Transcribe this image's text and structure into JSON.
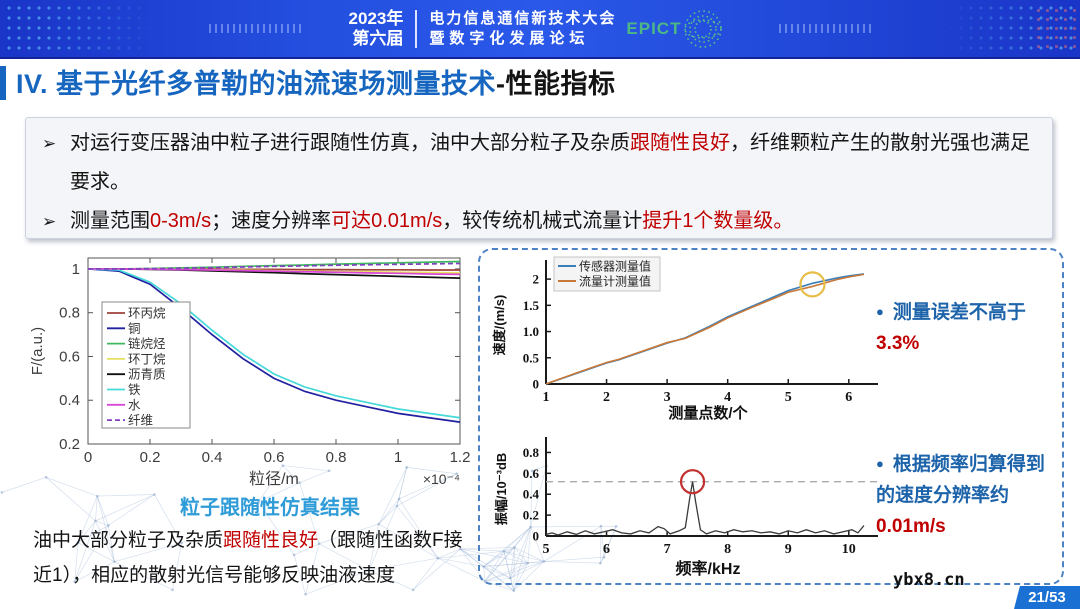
{
  "banner": {
    "year": "2023年",
    "edition": "第六届",
    "conference_line1": "电力信息通信新技术大会",
    "conference_line2": "暨数字化发展论坛",
    "logo_text": "EPICT"
  },
  "page_title": {
    "main": "IV. 基于光纤多普勒的油流速场测量技术",
    "suffix": "-性能指标"
  },
  "intro": {
    "marker": "➢",
    "bullets": [
      {
        "segments": [
          {
            "t": "对运行变压器油中粒子进行跟随性仿真，油中大部分粒子及杂质",
            "c": "dark"
          },
          {
            "t": "跟随性良好",
            "c": "red"
          },
          {
            "t": "，纤维颗粒产生的散射光强也满足要求。",
            "c": "dark"
          }
        ]
      },
      {
        "segments": [
          {
            "t": "测量范围",
            "c": "dark"
          },
          {
            "t": "0-3m/s",
            "c": "red"
          },
          {
            "t": "；速度分辨率",
            "c": "dark"
          },
          {
            "t": "可达0.01m/s",
            "c": "red"
          },
          {
            "t": "，较传统机械式流量计",
            "c": "dark"
          },
          {
            "t": "提升1个数量级。",
            "c": "red"
          }
        ]
      }
    ]
  },
  "left_caption": "粒子跟随性仿真结果",
  "note": {
    "segments": [
      {
        "t": "油中大部分粒子及杂质",
        "c": "dark"
      },
      {
        "t": "跟随性良好",
        "c": "red"
      },
      {
        "t": "（跟随性函数F接近1），相应的散射光信号能够反映油液速度",
        "c": "dark"
      }
    ]
  },
  "right_bullets": [
    {
      "segments": [
        {
          "t": "测量误差不高于",
          "c": "blue"
        },
        {
          "t": "3.3%",
          "c": "red"
        }
      ]
    },
    {
      "segments": [
        {
          "t": "根据频率归算得到的速度分辨率约",
          "c": "blue"
        },
        {
          "t": "0.01m/s",
          "c": "red"
        }
      ]
    }
  ],
  "watermark": "ybx8.cn",
  "page_number": "21/53",
  "chart_data": [
    {
      "id": "follow",
      "type": "line",
      "caption": "粒子跟随性仿真结果",
      "xlabel": "粒径/m",
      "x_scale_note": "×10⁻⁴",
      "ylabel": "F/(a.u.)",
      "xlim": [
        0,
        1.2
      ],
      "ylim": [
        0.2,
        1.05
      ],
      "xticks": [
        "0",
        "0.2",
        "0.4",
        "0.6",
        "0.8",
        "1",
        "1.2"
      ],
      "yticks": [
        "0.2",
        "0.4",
        "0.6",
        "0.8",
        "1"
      ],
      "grid": false,
      "legend_position": "upper-left-inside",
      "x": [
        0,
        0.1,
        0.2,
        0.3,
        0.4,
        0.5,
        0.6,
        0.7,
        0.8,
        0.9,
        1.0,
        1.1,
        1.2
      ],
      "series": [
        {
          "name": "环丙烷",
          "color": "#a0403a",
          "dash": null,
          "values": [
            1.0,
            1.0,
            1.0,
            0.999,
            0.999,
            0.998,
            0.998,
            0.997,
            0.997,
            0.996,
            0.996,
            0.995,
            0.995
          ]
        },
        {
          "name": "铜",
          "color": "#2020a0",
          "dash": null,
          "values": [
            1.0,
            0.99,
            0.93,
            0.82,
            0.7,
            0.59,
            0.5,
            0.44,
            0.4,
            0.37,
            0.34,
            0.32,
            0.3
          ]
        },
        {
          "name": "链烷烃",
          "color": "#40b860",
          "dash": null,
          "values": [
            1.0,
            1.0,
            1.002,
            1.005,
            1.008,
            1.012,
            1.015,
            1.018,
            1.022,
            1.025,
            1.028,
            1.031,
            1.034
          ]
        },
        {
          "name": "环丁烷",
          "color": "#e8e060",
          "dash": null,
          "values": [
            1.0,
            1.0,
            0.999,
            0.998,
            0.996,
            0.994,
            0.992,
            0.99,
            0.988,
            0.987,
            0.985,
            0.984,
            0.982
          ]
        },
        {
          "name": "沥青质",
          "color": "#101010",
          "dash": null,
          "values": [
            1.0,
            1.0,
            0.998,
            0.995,
            0.991,
            0.987,
            0.983,
            0.978,
            0.974,
            0.97,
            0.966,
            0.962,
            0.958
          ]
        },
        {
          "name": "铁",
          "color": "#45d8d8",
          "dash": null,
          "values": [
            1.0,
            0.995,
            0.94,
            0.84,
            0.72,
            0.61,
            0.52,
            0.46,
            0.42,
            0.39,
            0.36,
            0.34,
            0.32
          ]
        },
        {
          "name": "水",
          "color": "#d848d8",
          "dash": null,
          "values": [
            1.0,
            1.0,
            0.999,
            0.997,
            0.995,
            0.992,
            0.99,
            0.987,
            0.985,
            0.982,
            0.98,
            0.977,
            0.975
          ]
        },
        {
          "name": "纤维",
          "color": "#8040c0",
          "dash": "5,3",
          "values": [
            1.0,
            1.0,
            1.001,
            1.003,
            1.006,
            1.009,
            1.012,
            1.014,
            1.017,
            1.019,
            1.021,
            1.023,
            1.025
          ]
        }
      ]
    },
    {
      "id": "velocity",
      "type": "line",
      "xlabel": "测量点数/个",
      "ylabel": "速度/(m/s)",
      "xlim": [
        1,
        6.35
      ],
      "ylim": [
        0,
        2.25
      ],
      "xticks": [
        "1",
        "2",
        "3",
        "4",
        "5",
        "6"
      ],
      "yticks": [
        "0",
        "0.5",
        "1.0",
        "1.5",
        "2"
      ],
      "grid": false,
      "legend_position": "upper-left-inside",
      "x": [
        1,
        1.5,
        2,
        2.2,
        2.6,
        3,
        3.3,
        3.7,
        4,
        4.4,
        4.8,
        5,
        5.4,
        5.8,
        6,
        6.25
      ],
      "series": [
        {
          "name": "传感器测量值",
          "color": "#3a7fb8",
          "values": [
            0,
            0.2,
            0.4,
            0.46,
            0.62,
            0.78,
            0.88,
            1.1,
            1.28,
            1.48,
            1.68,
            1.78,
            1.92,
            2.02,
            2.06,
            2.1
          ]
        },
        {
          "name": "流量计测量值",
          "color": "#c87838",
          "values": [
            0,
            0.21,
            0.41,
            0.47,
            0.63,
            0.79,
            0.87,
            1.08,
            1.26,
            1.46,
            1.65,
            1.75,
            1.86,
            1.99,
            2.04,
            2.09
          ]
        }
      ],
      "highlight_circle": {
        "x": 5.4,
        "y": 1.9,
        "color": "#e6bd45"
      }
    },
    {
      "id": "spectrum",
      "type": "line",
      "xlabel": "频率/kHz",
      "ylabel": "振幅/10⁻³dB",
      "xlim": [
        5,
        10.35
      ],
      "ylim": [
        0,
        0.9
      ],
      "xticks": [
        "5",
        "6",
        "7",
        "8",
        "9",
        "10"
      ],
      "yticks": [
        "0",
        "0.2",
        "0.4",
        "0.6",
        "0.8"
      ],
      "grid": false,
      "line_color": "#3a3a3a",
      "peak": {
        "x": 7.42,
        "y": 0.52
      },
      "threshold_line_y": 0.52,
      "highlight_circle": {
        "x": 7.42,
        "y": 0.52,
        "color": "#c23030"
      },
      "points": [
        [
          5.0,
          0.015
        ],
        [
          5.1,
          0.03
        ],
        [
          5.2,
          0.01
        ],
        [
          5.35,
          0.04
        ],
        [
          5.5,
          0.015
        ],
        [
          5.65,
          0.05
        ],
        [
          5.8,
          0.02
        ],
        [
          5.95,
          0.04
        ],
        [
          6.1,
          0.06
        ],
        [
          6.25,
          0.03
        ],
        [
          6.4,
          0.02
        ],
        [
          6.55,
          0.05
        ],
        [
          6.7,
          0.03
        ],
        [
          6.85,
          0.09
        ],
        [
          6.95,
          0.07
        ],
        [
          7.05,
          0.02
        ],
        [
          7.2,
          0.05
        ],
        [
          7.3,
          0.08
        ],
        [
          7.37,
          0.35
        ],
        [
          7.42,
          0.52
        ],
        [
          7.47,
          0.33
        ],
        [
          7.55,
          0.06
        ],
        [
          7.65,
          0.02
        ],
        [
          7.8,
          0.05
        ],
        [
          7.95,
          0.03
        ],
        [
          8.1,
          0.06
        ],
        [
          8.25,
          0.04
        ],
        [
          8.4,
          0.05
        ],
        [
          8.55,
          0.03
        ],
        [
          8.7,
          0.04
        ],
        [
          8.85,
          0.02
        ],
        [
          9.0,
          0.05
        ],
        [
          9.15,
          0.03
        ],
        [
          9.3,
          0.06
        ],
        [
          9.45,
          0.03
        ],
        [
          9.6,
          0.05
        ],
        [
          9.75,
          0.02
        ],
        [
          9.9,
          0.04
        ],
        [
          10.05,
          0.06
        ],
        [
          10.15,
          0.03
        ],
        [
          10.25,
          0.1
        ]
      ]
    }
  ]
}
